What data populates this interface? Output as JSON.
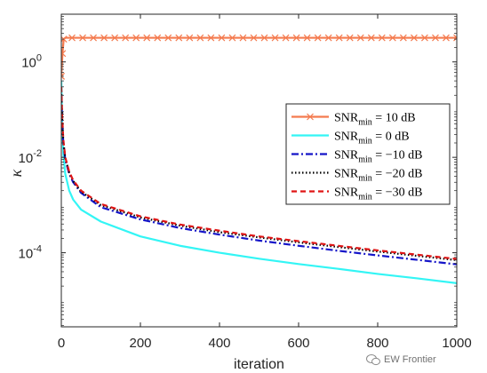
{
  "chart_data": {
    "type": "line",
    "xlabel": "iteration",
    "ylabel": "κ",
    "xlim": [
      0,
      1000
    ],
    "ylim": [
      2.8e-06,
      10
    ],
    "yscale": "log",
    "xticks": [
      0,
      200,
      400,
      600,
      800,
      1000
    ],
    "yticks": [
      0.0001,
      0.01,
      1
    ],
    "ytick_labels": [
      {
        "base": "10",
        "exp": "-4"
      },
      {
        "base": "10",
        "exp": "-2"
      },
      {
        "base": "10",
        "exp": "0"
      }
    ],
    "grid": false,
    "legend_position": "right",
    "series": [
      {
        "name": "SNRmin = 10 dB",
        "name_main": "SNR",
        "name_sub": "min",
        "name_rest": " = 10 dB",
        "color": "#F47B4F",
        "dash": "solid",
        "marker": "x",
        "x": [
          0,
          3,
          6,
          10,
          1000
        ],
        "y": [
          0.5,
          1.5,
          3.0,
          3.2,
          3.2
        ]
      },
      {
        "name": "SNRmin = 0 dB",
        "name_main": "SNR",
        "name_sub": "min",
        "name_rest": " = 0 dB",
        "color": "#33F5F5",
        "dash": "solid",
        "marker": "none",
        "x": [
          0,
          2,
          5,
          10,
          20,
          30,
          50,
          100,
          200,
          300,
          400,
          500,
          600,
          700,
          800,
          900,
          1000
        ],
        "y": [
          0.4,
          0.05,
          0.012,
          0.0045,
          0.002,
          0.0013,
          0.0008,
          0.00045,
          0.00022,
          0.00014,
          0.0001,
          7.5e-05,
          5.8e-05,
          4.6e-05,
          3.6e-05,
          2.9e-05,
          2.3e-05
        ]
      },
      {
        "name": "SNRmin = −10 dB",
        "name_main": "SNR",
        "name_sub": "min",
        "name_rest": " = −10 dB",
        "color": "#1515C8",
        "dash": "dashdot",
        "marker": "none",
        "x": [
          0,
          2,
          5,
          10,
          20,
          30,
          50,
          100,
          200,
          300,
          400,
          500,
          600,
          700,
          800,
          900,
          1000
        ],
        "y": [
          0.2,
          0.06,
          0.02,
          0.009,
          0.0045,
          0.003,
          0.0018,
          0.0009,
          0.0005,
          0.00033,
          0.00024,
          0.00018,
          0.00014,
          0.00011,
          8.8e-05,
          7.1e-05,
          5.7e-05
        ]
      },
      {
        "name": "SNRmin = −20 dB",
        "name_main": "SNR",
        "name_sub": "min",
        "name_rest": " = −20 dB",
        "color": "#000000",
        "dash": "dotted",
        "marker": "none",
        "x": [
          0,
          2,
          5,
          10,
          20,
          30,
          50,
          100,
          200,
          300,
          400,
          500,
          600,
          700,
          800,
          900,
          1000
        ],
        "y": [
          0.25,
          0.07,
          0.022,
          0.0095,
          0.0048,
          0.0032,
          0.0019,
          0.001,
          0.00055,
          0.00037,
          0.00027,
          0.00021,
          0.000165,
          0.000132,
          0.000106,
          8.6e-05,
          7e-05
        ]
      },
      {
        "name": "SNRmin = −30 dB",
        "name_main": "SNR",
        "name_sub": "min",
        "name_rest": " = −30 dB",
        "color": "#E01515",
        "dash": "dashed",
        "marker": "none",
        "x": [
          0,
          2,
          5,
          10,
          20,
          30,
          50,
          100,
          200,
          300,
          400,
          500,
          600,
          700,
          800,
          900,
          1000
        ],
        "y": [
          0.3,
          0.08,
          0.024,
          0.01,
          0.005,
          0.0033,
          0.002,
          0.00105,
          0.00058,
          0.00039,
          0.00029,
          0.00022,
          0.000175,
          0.00014,
          0.000112,
          9.1e-05,
          7.4e-05
        ]
      }
    ]
  },
  "watermark": {
    "text": "EW Frontier",
    "icon": "wechat-icon"
  }
}
